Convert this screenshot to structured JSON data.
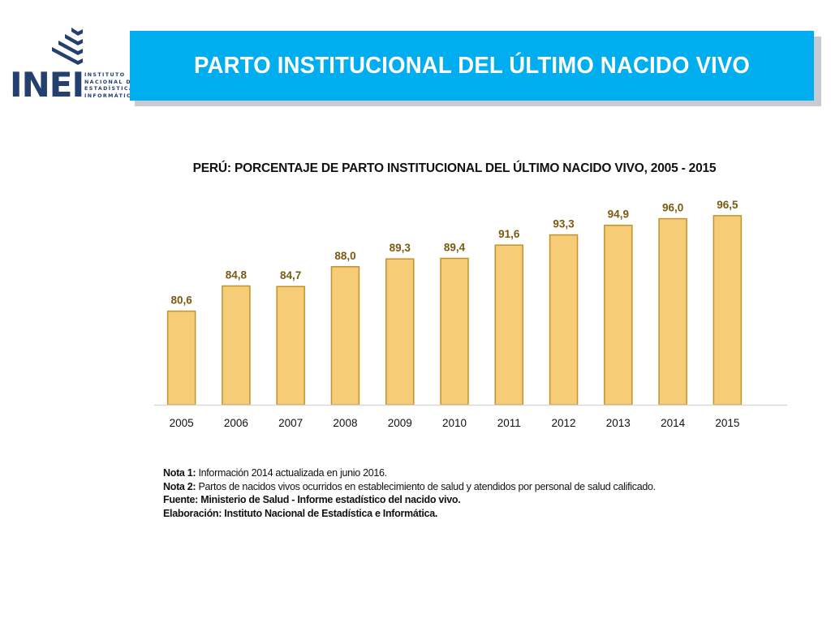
{
  "logo": {
    "word": "INEI",
    "sub_lines": [
      "INSTITUTO",
      "NACIONAL DE",
      "ESTADÍSTICA E",
      "INFORMÁTICA"
    ]
  },
  "header": {
    "title": "PARTO INSTITUCIONAL DEL ÚLTIMO NACIDO VIVO"
  },
  "chart_data": {
    "type": "bar",
    "title": "PERÚ: PORCENTAJE DE PARTO INSTITUCIONAL DEL ÚLTIMO NACIDO VIVO, 2005 - 2015",
    "categories": [
      "2005",
      "2006",
      "2007",
      "2008",
      "2009",
      "2010",
      "2011",
      "2012",
      "2013",
      "2014",
      "2015"
    ],
    "values": [
      80.6,
      84.8,
      84.7,
      88.0,
      89.3,
      89.4,
      91.6,
      93.3,
      94.9,
      96.0,
      96.5
    ],
    "value_labels": [
      "80,6",
      "84,8",
      "84,7",
      "88,0",
      "89,3",
      "89,4",
      "91,6",
      "93,3",
      "94,9",
      "96,0",
      "96,5"
    ],
    "xlabel": "",
    "ylabel": "",
    "ylim": [
      65,
      100
    ],
    "grid": false,
    "bar_color": "#f7cc77",
    "bar_edge_color": "#c2922b",
    "label_color": "#7a5a12"
  },
  "notes": {
    "note1_label": "Nota 1:",
    "note1_text": " Información 2014 actualizada en junio 2016.",
    "note2_label": "Nota 2:",
    "note2_text": " Partos de nacidos vivos ocurridos en establecimiento de salud y atendidos por personal de salud calificado.",
    "source": "Fuente: Ministerio de Salud - Informe estadístico del nacido vivo.",
    "elaboration": "Elaboración: Instituto Nacional de Estadística e Informática."
  }
}
